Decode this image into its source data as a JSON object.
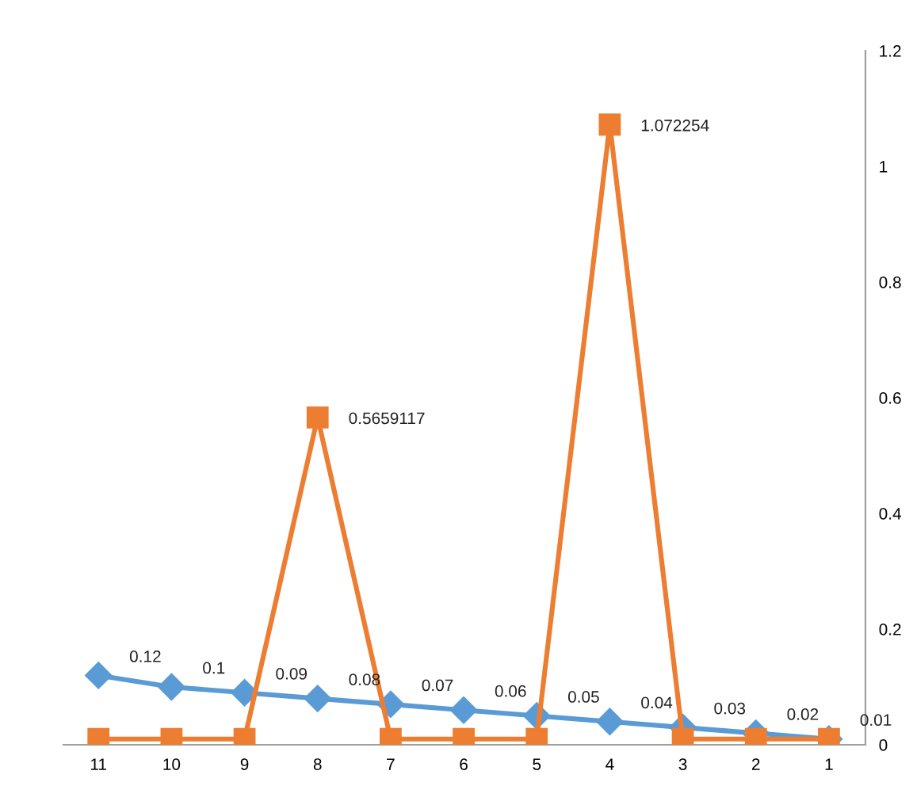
{
  "chart_data": {
    "type": "line",
    "categories": [
      "11",
      "10",
      "9",
      "8",
      "7",
      "6",
      "5",
      "4",
      "3",
      "2",
      "1"
    ],
    "series": [
      {
        "color": "#5b9bd5",
        "marker": "diamond",
        "values": [
          0.12,
          0.1,
          0.09,
          0.08,
          0.07,
          0.06,
          0.05,
          0.04,
          0.03,
          0.02,
          0.01
        ],
        "value_labels": [
          "0.12",
          "0.1",
          "0.09",
          "0.08",
          "0.07",
          "0.06",
          "0.05",
          "0.04",
          "0.03",
          "0.02",
          "0.01"
        ]
      },
      {
        "color": "#ed7d31",
        "marker": "square",
        "values": [
          0.01,
          0.01,
          0.01,
          0.5659117,
          0.01,
          0.01,
          0.01,
          1.072254,
          0.01,
          0.01,
          0.01
        ],
        "value_labels": [
          null,
          null,
          null,
          "0.5659117",
          null,
          null,
          null,
          "1.072254",
          null,
          null,
          null
        ]
      }
    ],
    "ylim": [
      0,
      1.2
    ],
    "yticks": [
      0,
      0.2,
      0.4,
      0.6,
      0.8,
      1,
      1.2
    ],
    "grid": false,
    "legend": false,
    "line_style": "solid"
  }
}
